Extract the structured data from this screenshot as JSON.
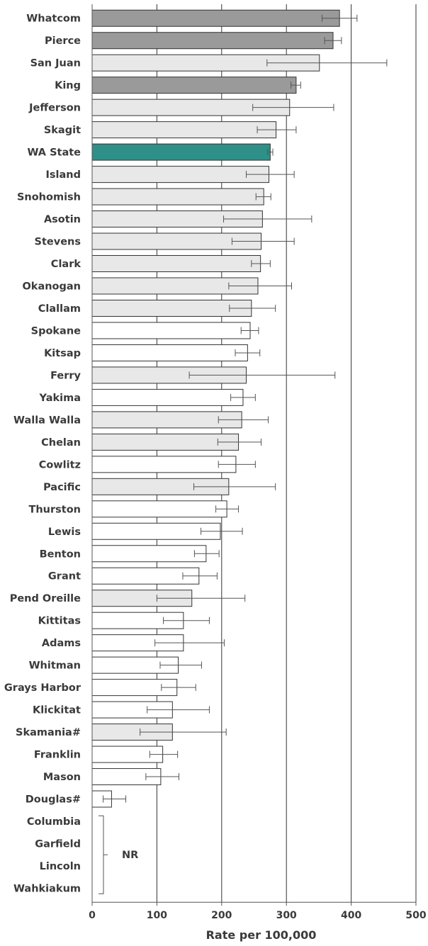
{
  "chart_data": {
    "type": "bar",
    "orientation": "horizontal",
    "xlabel": "Rate per 100,000",
    "xlim": [
      0,
      500
    ],
    "xticks": [
      0,
      100,
      200,
      300,
      400,
      500
    ],
    "grid": "vertical",
    "colors": {
      "dark": "#9a9a9a",
      "light": "#e8e8e8",
      "white": "#ffffff",
      "state": "#2e9089",
      "border": "#333333",
      "grid": "#333333"
    },
    "bars": [
      {
        "label": "Whatcom",
        "value": 382,
        "low": 355,
        "high": 409,
        "fill": "dark"
      },
      {
        "label": "Pierce",
        "value": 372,
        "low": 359,
        "high": 385,
        "fill": "dark"
      },
      {
        "label": "San Juan",
        "value": 351,
        "low": 270,
        "high": 455,
        "fill": "light"
      },
      {
        "label": "King",
        "value": 315,
        "low": 307,
        "high": 322,
        "fill": "dark"
      },
      {
        "label": "Jefferson",
        "value": 305,
        "low": 248,
        "high": 373,
        "fill": "light"
      },
      {
        "label": "Skagit",
        "value": 284,
        "low": 255,
        "high": 315,
        "fill": "light"
      },
      {
        "label": "WA State",
        "value": 275,
        "low": 271,
        "high": 279,
        "fill": "state"
      },
      {
        "label": "Island",
        "value": 273,
        "low": 238,
        "high": 312,
        "fill": "light"
      },
      {
        "label": "Snohomish",
        "value": 265,
        "low": 253,
        "high": 276,
        "fill": "light"
      },
      {
        "label": "Asotin",
        "value": 263,
        "low": 203,
        "high": 339,
        "fill": "light"
      },
      {
        "label": "Stevens",
        "value": 261,
        "low": 216,
        "high": 312,
        "fill": "light"
      },
      {
        "label": "Clark",
        "value": 260,
        "low": 246,
        "high": 275,
        "fill": "light"
      },
      {
        "label": "Okanogan",
        "value": 256,
        "low": 211,
        "high": 308,
        "fill": "light"
      },
      {
        "label": "Clallam",
        "value": 246,
        "low": 212,
        "high": 283,
        "fill": "light"
      },
      {
        "label": "Spokane",
        "value": 244,
        "low": 230,
        "high": 257,
        "fill": "white"
      },
      {
        "label": "Kitsap",
        "value": 240,
        "low": 221,
        "high": 259,
        "fill": "white"
      },
      {
        "label": "Ferry",
        "value": 238,
        "low": 150,
        "high": 375,
        "fill": "light"
      },
      {
        "label": "Yakima",
        "value": 233,
        "low": 214,
        "high": 252,
        "fill": "white"
      },
      {
        "label": "Walla Walla",
        "value": 231,
        "low": 195,
        "high": 272,
        "fill": "light"
      },
      {
        "label": "Chelan",
        "value": 226,
        "low": 194,
        "high": 261,
        "fill": "light"
      },
      {
        "label": "Cowlitz",
        "value": 222,
        "low": 195,
        "high": 252,
        "fill": "white"
      },
      {
        "label": "Pacific",
        "value": 211,
        "low": 157,
        "high": 283,
        "fill": "light"
      },
      {
        "label": "Thurston",
        "value": 208,
        "low": 191,
        "high": 226,
        "fill": "white"
      },
      {
        "label": "Lewis",
        "value": 198,
        "low": 168,
        "high": 232,
        "fill": "white"
      },
      {
        "label": "Benton",
        "value": 176,
        "low": 158,
        "high": 196,
        "fill": "white"
      },
      {
        "label": "Grant",
        "value": 165,
        "low": 140,
        "high": 193,
        "fill": "white"
      },
      {
        "label": "Pend Oreille",
        "value": 154,
        "low": 100,
        "high": 236,
        "fill": "light"
      },
      {
        "label": "Kittitas",
        "value": 141,
        "low": 110,
        "high": 181,
        "fill": "white"
      },
      {
        "label": "Adams",
        "value": 141,
        "low": 97,
        "high": 204,
        "fill": "white"
      },
      {
        "label": "Whitman",
        "value": 133,
        "low": 105,
        "high": 169,
        "fill": "white"
      },
      {
        "label": "Grays Harbor",
        "value": 131,
        "low": 107,
        "high": 160,
        "fill": "white"
      },
      {
        "label": "Klickitat",
        "value": 124,
        "low": 85,
        "high": 181,
        "fill": "white"
      },
      {
        "label": "Skamania#",
        "value": 124,
        "low": 74,
        "high": 207,
        "fill": "light"
      },
      {
        "label": "Franklin",
        "value": 109,
        "low": 89,
        "high": 132,
        "fill": "white"
      },
      {
        "label": "Mason",
        "value": 106,
        "low": 83,
        "high": 134,
        "fill": "white"
      },
      {
        "label": "Douglas#",
        "value": 30,
        "low": 17,
        "high": 52,
        "fill": "white"
      },
      {
        "label": "Columbia",
        "value": null,
        "fill": "none"
      },
      {
        "label": "Garfield",
        "value": null,
        "fill": "none"
      },
      {
        "label": "Lincoln",
        "value": null,
        "fill": "none"
      },
      {
        "label": "Wahkiakum",
        "value": null,
        "fill": "none"
      }
    ],
    "annotation": "NR"
  }
}
